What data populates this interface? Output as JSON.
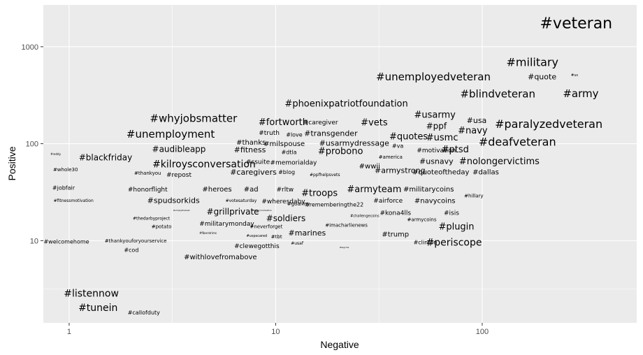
{
  "chart_data": {
    "type": "scatter",
    "xlabel": "Negative",
    "ylabel": "Positive",
    "x_scale": "log10",
    "y_scale": "log10",
    "xlim": [
      0.75,
      560
    ],
    "ylim": [
      1.42,
      2700
    ],
    "x_ticks": [
      1,
      10,
      100
    ],
    "x_tick_labels": [
      "1",
      "10",
      "100"
    ],
    "y_ticks": [
      10,
      100,
      1000
    ],
    "y_tick_labels": [
      "10",
      "100",
      "1000"
    ],
    "grid": true,
    "background": "#ebebeb",
    "gridline_color": "#ffffff",
    "text_color": "#000000",
    "points": [
      {
        "label": "#veteran",
        "x": 285,
        "y": 1760,
        "size": 22
      },
      {
        "label": "#military",
        "x": 175,
        "y": 695,
        "size": 16
      },
      {
        "label": "#unemployedveteran",
        "x": 58,
        "y": 490,
        "size": 15
      },
      {
        "label": "#quote",
        "x": 195,
        "y": 492,
        "size": 11
      },
      {
        "label": "#us",
        "x": 280,
        "y": 510,
        "size": 5
      },
      {
        "label": "#blindveteran",
        "x": 119,
        "y": 328,
        "size": 15
      },
      {
        "label": "#army",
        "x": 300,
        "y": 330,
        "size": 15
      },
      {
        "label": "#phoenixpatriotfoundation",
        "x": 22,
        "y": 260,
        "size": 13
      },
      {
        "label": "#usarmy",
        "x": 59,
        "y": 200,
        "size": 13
      },
      {
        "label": "#whyjobsmatter",
        "x": 4.0,
        "y": 183,
        "size": 15
      },
      {
        "label": "#fortworth",
        "x": 10.9,
        "y": 168,
        "size": 13
      },
      {
        "label": "#caregiver",
        "x": 16.5,
        "y": 166,
        "size": 9
      },
      {
        "label": "#vets",
        "x": 30,
        "y": 166,
        "size": 13
      },
      {
        "label": "#usa",
        "x": 94,
        "y": 174,
        "size": 11
      },
      {
        "label": "#paralyzedveteran",
        "x": 210,
        "y": 160,
        "size": 16
      },
      {
        "label": "#ppf",
        "x": 60,
        "y": 152,
        "size": 12
      },
      {
        "label": "#navy",
        "x": 90,
        "y": 137,
        "size": 13
      },
      {
        "label": "#unemployment",
        "x": 3.1,
        "y": 126,
        "size": 15
      },
      {
        "label": "#truth",
        "x": 9.3,
        "y": 130,
        "size": 9
      },
      {
        "label": "#love",
        "x": 12.3,
        "y": 124,
        "size": 8
      },
      {
        "label": "#transgender",
        "x": 18.5,
        "y": 128,
        "size": 11
      },
      {
        "label": "#quotes",
        "x": 44,
        "y": 119,
        "size": 13
      },
      {
        "label": "#usmc",
        "x": 64,
        "y": 116,
        "size": 13
      },
      {
        "label": "#deafveteran",
        "x": 148,
        "y": 105,
        "size": 16
      },
      {
        "label": "#thanks",
        "x": 7.6,
        "y": 104,
        "size": 10
      },
      {
        "label": "#milspouse",
        "x": 11.0,
        "y": 100,
        "size": 10
      },
      {
        "label": "#usarmydressage",
        "x": 24,
        "y": 102,
        "size": 11
      },
      {
        "label": "#va",
        "x": 39,
        "y": 95,
        "size": 8
      },
      {
        "label": "#motivation",
        "x": 60,
        "y": 86,
        "size": 9
      },
      {
        "label": "#ptsd",
        "x": 74,
        "y": 88,
        "size": 13
      },
      {
        "label": "#audibleapp",
        "x": 3.4,
        "y": 88,
        "size": 12
      },
      {
        "label": "#fitness",
        "x": 7.5,
        "y": 87,
        "size": 11
      },
      {
        "label": "#dtla",
        "x": 11.6,
        "y": 82,
        "size": 8
      },
      {
        "label": "#probono",
        "x": 20.6,
        "y": 84,
        "size": 13
      },
      {
        "label": "#reddy",
        "x": 0.86,
        "y": 78,
        "size": 4
      },
      {
        "label": "#america",
        "x": 36,
        "y": 73,
        "size": 7
      },
      {
        "label": "#blackfriday",
        "x": 1.5,
        "y": 72,
        "size": 12
      },
      {
        "label": "#usnavy",
        "x": 60,
        "y": 66,
        "size": 11
      },
      {
        "label": "#nolongervictims",
        "x": 121,
        "y": 66,
        "size": 13
      },
      {
        "label": "#kilroysconversation",
        "x": 4.5,
        "y": 62,
        "size": 14
      },
      {
        "label": "#csuite",
        "x": 8.2,
        "y": 65,
        "size": 9
      },
      {
        "label": "#memorialday",
        "x": 12.2,
        "y": 64,
        "size": 9
      },
      {
        "label": "#wwii",
        "x": 28.5,
        "y": 59,
        "size": 10
      },
      {
        "label": "#whole30",
        "x": 0.96,
        "y": 54,
        "size": 7
      },
      {
        "label": "#caregivers",
        "x": 7.8,
        "y": 51,
        "size": 11
      },
      {
        "label": "#blog",
        "x": 11.3,
        "y": 51,
        "size": 8
      },
      {
        "label": "#ppfhelpsvets",
        "x": 17.3,
        "y": 48,
        "size": 6
      },
      {
        "label": "#armystrong",
        "x": 40,
        "y": 53,
        "size": 11
      },
      {
        "label": "#quoteoftheday",
        "x": 63,
        "y": 51,
        "size": 10
      },
      {
        "label": "#dallas",
        "x": 104,
        "y": 51,
        "size": 10
      },
      {
        "label": "#thankyou",
        "x": 2.4,
        "y": 50,
        "size": 7
      },
      {
        "label": "#repost",
        "x": 3.4,
        "y": 48,
        "size": 9
      },
      {
        "label": "#jobfair",
        "x": 0.94,
        "y": 35,
        "size": 8
      },
      {
        "label": "#honorflight",
        "x": 2.4,
        "y": 34,
        "size": 9
      },
      {
        "label": "#heroes",
        "x": 5.2,
        "y": 34,
        "size": 10
      },
      {
        "label": "#ad",
        "x": 7.6,
        "y": 34,
        "size": 10
      },
      {
        "label": "#rltw",
        "x": 11.1,
        "y": 34,
        "size": 9
      },
      {
        "label": "#troops",
        "x": 16.3,
        "y": 31,
        "size": 13
      },
      {
        "label": "#armyteam",
        "x": 30,
        "y": 34,
        "size": 13
      },
      {
        "label": "#militarycoins",
        "x": 55,
        "y": 34,
        "size": 10
      },
      {
        "label": "#hillary",
        "x": 91,
        "y": 29,
        "size": 7
      },
      {
        "label": "#fitnessmotivation",
        "x": 1.05,
        "y": 26,
        "size": 6
      },
      {
        "label": "#spudsorkids",
        "x": 3.2,
        "y": 26,
        "size": 11
      },
      {
        "label": "#votesaturday",
        "x": 6.8,
        "y": 26,
        "size": 6
      },
      {
        "label": "#wheresdaby",
        "x": 10.9,
        "y": 25.5,
        "size": 9
      },
      {
        "label": "#goarmy",
        "x": 12.9,
        "y": 24,
        "size": 7
      },
      {
        "label": "#rememberingthe22",
        "x": 19.2,
        "y": 23.5,
        "size": 8
      },
      {
        "label": "#airforce",
        "x": 35,
        "y": 26,
        "size": 9
      },
      {
        "label": "#navycoins",
        "x": 59,
        "y": 26,
        "size": 10
      },
      {
        "label": "#simplythebest",
        "x": 3.5,
        "y": 20.5,
        "size": 3
      },
      {
        "label": "#grillprivate",
        "x": 6.2,
        "y": 20,
        "size": 12
      },
      {
        "label": "#familymotivation",
        "x": 8.6,
        "y": 20.5,
        "size": 3
      },
      {
        "label": "#kona4lls",
        "x": 38,
        "y": 19.5,
        "size": 9
      },
      {
        "label": "#isis",
        "x": 71,
        "y": 19.5,
        "size": 9
      },
      {
        "label": "#thedarbyproject",
        "x": 2.5,
        "y": 17,
        "size": 6
      },
      {
        "label": "#soldiers",
        "x": 11.2,
        "y": 17,
        "size": 12
      },
      {
        "label": "#challengecoins",
        "x": 27,
        "y": 18,
        "size": 5
      },
      {
        "label": "#armycoins",
        "x": 51,
        "y": 16.5,
        "size": 7
      },
      {
        "label": "#militarymonday",
        "x": 5.8,
        "y": 15,
        "size": 9
      },
      {
        "label": "#imacharlienews",
        "x": 22,
        "y": 14.5,
        "size": 7
      },
      {
        "label": "#plugin",
        "x": 75,
        "y": 14,
        "size": 13
      },
      {
        "label": "#potato",
        "x": 2.8,
        "y": 14,
        "size": 7
      },
      {
        "label": "#neverforget",
        "x": 9.0,
        "y": 14,
        "size": 7
      },
      {
        "label": "#fiberstrims",
        "x": 4.7,
        "y": 12,
        "size": 4
      },
      {
        "label": "#marines",
        "x": 14.2,
        "y": 12,
        "size": 11
      },
      {
        "label": "#trump",
        "x": 38,
        "y": 11.7,
        "size": 10
      },
      {
        "label": "#uspscared",
        "x": 8.1,
        "y": 11.3,
        "size": 5
      },
      {
        "label": "#tbt",
        "x": 10.1,
        "y": 11,
        "size": 7
      },
      {
        "label": "#welcomehome",
        "x": 0.97,
        "y": 9.8,
        "size": 8
      },
      {
        "label": "#thankyouforyourservice",
        "x": 2.1,
        "y": 10,
        "size": 7
      },
      {
        "label": "#usaf",
        "x": 12.7,
        "y": 9.4,
        "size": 6
      },
      {
        "label": "#clinton",
        "x": 53,
        "y": 9.6,
        "size": 8
      },
      {
        "label": "#periscope",
        "x": 73,
        "y": 9.6,
        "size": 14
      },
      {
        "label": "#clewegotthis",
        "x": 8.1,
        "y": 8.8,
        "size": 9
      },
      {
        "label": "#tagchik",
        "x": 21.5,
        "y": 8.5,
        "size": 3
      },
      {
        "label": "#cod",
        "x": 2.0,
        "y": 8.0,
        "size": 8
      },
      {
        "label": "#withlovefromabove",
        "x": 5.4,
        "y": 6.8,
        "size": 10
      },
      {
        "label": "#listennow",
        "x": 1.28,
        "y": 2.86,
        "size": 14
      },
      {
        "label": "#tunein",
        "x": 1.38,
        "y": 2.04,
        "size": 14
      },
      {
        "label": "#callofduty",
        "x": 2.3,
        "y": 1.82,
        "size": 8
      }
    ]
  }
}
